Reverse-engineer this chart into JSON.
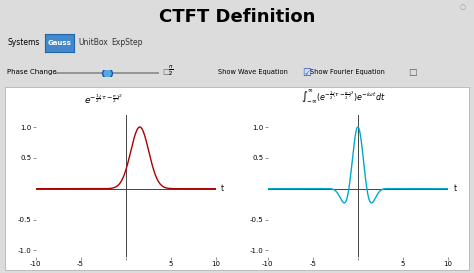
{
  "title": "CTFT Definition",
  "bg_color": "#dcdcdc",
  "plot_bg_color": "#ffffff",
  "title_fontsize": 13,
  "systems_label": "Systems",
  "gauss_label": "Gauss",
  "unitbox_label": "UnitBox",
  "expstep_label": "ExpStep",
  "phase_label": "Phase Change",
  "show_wave_label": "Show Wave Equation",
  "show_fourier_label": "Show Fourier Equation",
  "left_formula": "$e^{-\\frac{1}{2}(\\tau - \\frac{\\pi}{2})^2}$",
  "right_formula": "$\\int_{-\\infty}^{\\infty}(e^{-\\frac{1}{2}(\\tau - \\frac{\\pi}{2})^2})e^{-i\\omega t}dt$",
  "xlim": [
    -10,
    10
  ],
  "ylim": [
    -1.0,
    1.2
  ],
  "left_line_color": "#aa0000",
  "right_line_color": "#00aacc",
  "axis_color": "#444444",
  "tick_color": "#444444",
  "gauss_mu": 1.5707963267948966,
  "gauss_sigma": 1.0,
  "gauss_btn_color": "#4488cc",
  "slider_color": "#888888",
  "slider_thumb_color": "#3399dd"
}
